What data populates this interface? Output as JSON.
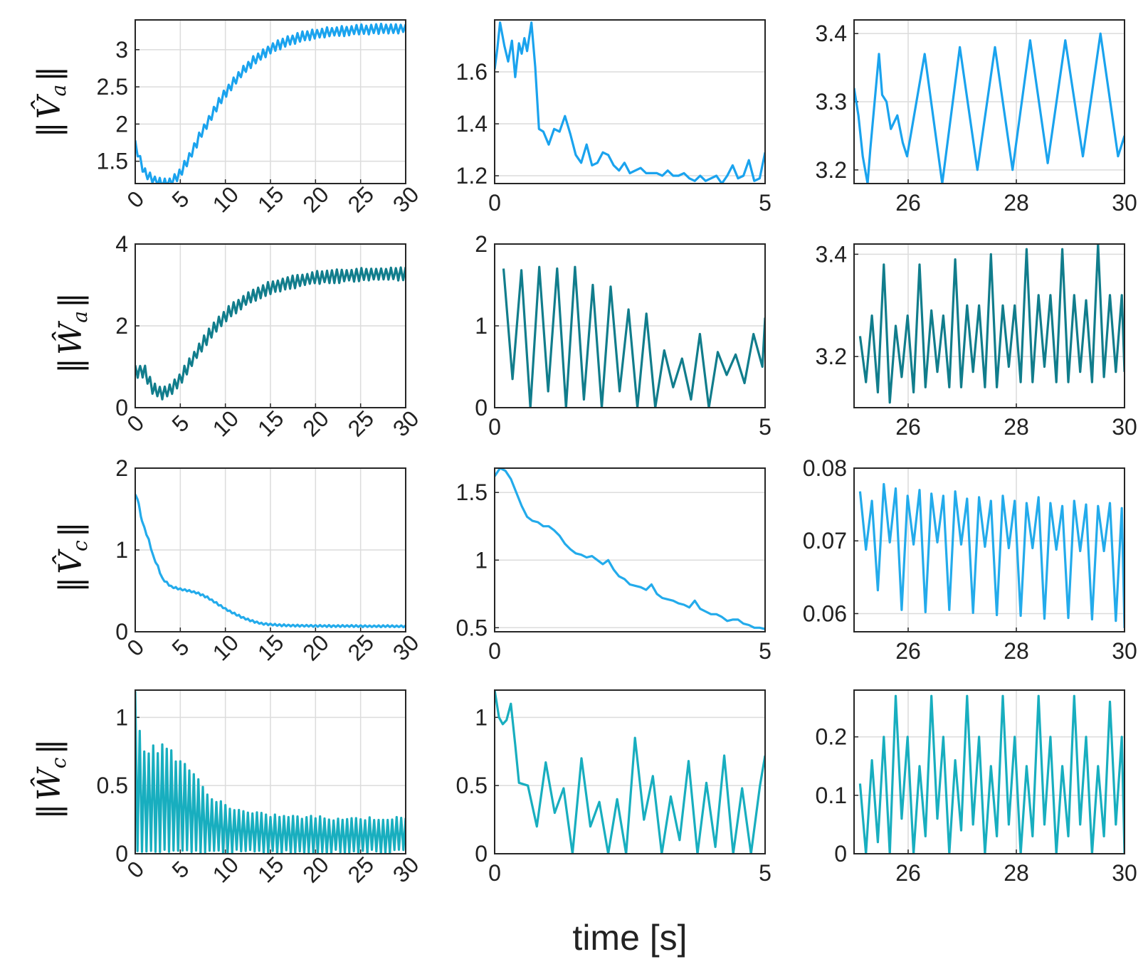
{
  "figure": {
    "xlabel": "time [s]"
  },
  "colors": {
    "Va": "#1aa3ee",
    "Wa": "#117d8c",
    "Vc": "#23abeb",
    "Wc": "#18aebf",
    "frame": "#262626",
    "grid": "#dcdcdc"
  },
  "rows": [
    {
      "id": "Va",
      "ylabel": {
        "base": "V",
        "sub": "a"
      }
    },
    {
      "id": "Wa",
      "ylabel": {
        "base": "W",
        "sub": "a"
      }
    },
    {
      "id": "Vc",
      "ylabel": {
        "base": "V",
        "sub": "c"
      }
    },
    {
      "id": "Wc",
      "ylabel": {
        "base": "W",
        "sub": "c"
      }
    }
  ],
  "chart_data": [
    {
      "type": "line",
      "row": 0,
      "col": 0,
      "series": "Va",
      "xlim": [
        0,
        30
      ],
      "ylim": [
        1.2,
        3.4
      ],
      "xticks": [
        "0",
        "5",
        "10",
        "15",
        "20",
        "25",
        "30"
      ],
      "xtick_rotation": "-45",
      "yticks": [
        "1.5",
        "2",
        "2.5",
        "3"
      ],
      "x": [
        0,
        1,
        2,
        3,
        4,
        5,
        6,
        7,
        8,
        9,
        10,
        11,
        12,
        13,
        14,
        15,
        16,
        17,
        18,
        19,
        20,
        21,
        22,
        23,
        24,
        25,
        26,
        27,
        28,
        29,
        30
      ],
      "values": [
        1.72,
        1.35,
        1.25,
        1.2,
        1.22,
        1.34,
        1.55,
        1.8,
        2.02,
        2.23,
        2.42,
        2.58,
        2.72,
        2.84,
        2.93,
        3.01,
        3.07,
        3.12,
        3.16,
        3.19,
        3.21,
        3.23,
        3.24,
        3.25,
        3.26,
        3.27,
        3.27,
        3.28,
        3.28,
        3.28,
        3.29
      ],
      "oscillation": {
        "period": 0.55,
        "amplitude": 0.07
      }
    },
    {
      "type": "line",
      "row": 0,
      "col": 1,
      "series": "Va",
      "xlim": [
        0,
        5
      ],
      "ylim": [
        1.17,
        1.8
      ],
      "xticks": [
        "0",
        "5"
      ],
      "yticks": [
        "1.2",
        "1.4",
        "1.6"
      ],
      "x": [
        0,
        0.05,
        0.1,
        0.18,
        0.25,
        0.32,
        0.38,
        0.45,
        0.5,
        0.55,
        0.6,
        0.68,
        0.75,
        0.82,
        0.9,
        1.0,
        1.1,
        1.2,
        1.3,
        1.4,
        1.5,
        1.6,
        1.7,
        1.8,
        1.9,
        2.0,
        2.1,
        2.2,
        2.3,
        2.4,
        2.5,
        2.6,
        2.7,
        2.8,
        2.9,
        3.0,
        3.1,
        3.2,
        3.3,
        3.4,
        3.5,
        3.6,
        3.7,
        3.8,
        3.9,
        4.0,
        4.1,
        4.2,
        4.3,
        4.4,
        4.5,
        4.6,
        4.7,
        4.8,
        4.9,
        5.0
      ],
      "values": [
        1.61,
        1.69,
        1.79,
        1.7,
        1.64,
        1.72,
        1.58,
        1.71,
        1.67,
        1.73,
        1.68,
        1.79,
        1.62,
        1.38,
        1.37,
        1.32,
        1.38,
        1.37,
        1.43,
        1.36,
        1.28,
        1.25,
        1.32,
        1.24,
        1.25,
        1.29,
        1.28,
        1.24,
        1.22,
        1.25,
        1.21,
        1.22,
        1.23,
        1.21,
        1.21,
        1.21,
        1.2,
        1.22,
        1.2,
        1.2,
        1.21,
        1.19,
        1.18,
        1.2,
        1.18,
        1.19,
        1.2,
        1.17,
        1.2,
        1.24,
        1.19,
        1.2,
        1.26,
        1.18,
        1.19,
        1.29
      ]
    },
    {
      "type": "line",
      "row": 0,
      "col": 2,
      "series": "Va",
      "xlim": [
        25,
        30
      ],
      "ylim": [
        3.18,
        3.42
      ],
      "xticks": [
        "26",
        "28",
        "30"
      ],
      "yticks": [
        "3.2",
        "3.3",
        "3.4"
      ],
      "x": [
        25,
        25.08,
        25.16,
        25.25,
        25.3,
        25.38,
        25.46,
        25.52,
        25.6,
        25.68,
        25.8,
        25.9,
        25.98
      ],
      "values": [
        3.32,
        3.28,
        3.22,
        3.18,
        3.23,
        3.3,
        3.37,
        3.31,
        3.3,
        3.26,
        3.28,
        3.24,
        3.22
      ],
      "periodic": {
        "period": 0.65,
        "peaks": [
          3.37,
          3.38,
          3.38,
          3.39,
          3.39,
          3.4,
          3.4,
          3.41
        ],
        "troughs": [
          3.18,
          3.2,
          3.2,
          3.21,
          3.22,
          3.22,
          3.23,
          3.23
        ],
        "end": 3.25
      }
    },
    {
      "type": "line",
      "row": 1,
      "col": 0,
      "series": "Wa",
      "xlim": [
        0,
        30
      ],
      "ylim": [
        0,
        4
      ],
      "xticks": [
        "0",
        "5",
        "10",
        "15",
        "20",
        "25",
        "30"
      ],
      "xtick_rotation": "-45",
      "yticks": [
        "0",
        "2",
        "4"
      ],
      "x": [
        0,
        1,
        2,
        3,
        4,
        5,
        6,
        7,
        8,
        9,
        10,
        11,
        12,
        13,
        14,
        15,
        16,
        17,
        18,
        19,
        20,
        21,
        22,
        23,
        24,
        25,
        26,
        27,
        28,
        29,
        30
      ],
      "values": [
        0.9,
        0.9,
        0.45,
        0.35,
        0.45,
        0.7,
        1.05,
        1.4,
        1.72,
        2.0,
        2.24,
        2.44,
        2.6,
        2.73,
        2.84,
        2.93,
        3.0,
        3.06,
        3.1,
        3.14,
        3.17,
        3.19,
        3.21,
        3.22,
        3.24,
        3.25,
        3.26,
        3.26,
        3.27,
        3.27,
        3.27
      ],
      "oscillation": {
        "period": 0.55,
        "amplitude": 0.17
      }
    },
    {
      "type": "line",
      "row": 1,
      "col": 1,
      "series": "Wa",
      "xlim": [
        0,
        5
      ],
      "ylim": [
        0,
        2
      ],
      "xticks": [
        "0",
        "5"
      ],
      "yticks": [
        "0",
        "1",
        "2"
      ],
      "periodic": {
        "period": 0.33,
        "peaks": [
          1.7,
          1.68,
          1.72,
          1.7,
          1.72,
          1.5,
          1.48,
          1.2,
          1.15,
          0.7,
          0.6,
          0.9,
          0.68,
          0.65,
          0.9,
          0.65
        ],
        "troughs": [
          0.35,
          0.0,
          0.2,
          0.0,
          0.1,
          0.0,
          0.2,
          0.0,
          0.0,
          0.25,
          0.1,
          0.0,
          0.4,
          0.3,
          0.5,
          0.35
        ],
        "end": 1.1
      }
    },
    {
      "type": "line",
      "row": 1,
      "col": 2,
      "series": "Wa",
      "xlim": [
        25,
        30
      ],
      "ylim": [
        3.1,
        3.42
      ],
      "xticks": [
        "26",
        "28",
        "30"
      ],
      "yticks": [
        "3.2",
        "3.4"
      ],
      "periodic": {
        "period": 0.22,
        "peaks": [
          3.24,
          3.28,
          3.38,
          3.26,
          3.28,
          3.38,
          3.29,
          3.28,
          3.39,
          3.3,
          3.3,
          3.4,
          3.3,
          3.3,
          3.41,
          3.32,
          3.32,
          3.41,
          3.32,
          3.31,
          3.42,
          3.32,
          3.32
        ],
        "troughs": [
          3.15,
          3.13,
          3.11,
          3.16,
          3.13,
          3.14,
          3.17,
          3.14,
          3.14,
          3.17,
          3.14,
          3.14,
          3.18,
          3.15,
          3.15,
          3.18,
          3.15,
          3.15,
          3.17,
          3.15,
          3.16,
          3.17,
          3.16
        ],
        "end": 3.17
      }
    },
    {
      "type": "line",
      "row": 2,
      "col": 0,
      "series": "Vc",
      "xlim": [
        0,
        30
      ],
      "ylim": [
        0,
        2
      ],
      "xticks": [
        "0",
        "5",
        "10",
        "15",
        "20",
        "25",
        "30"
      ],
      "xtick_rotation": "-45",
      "yticks": [
        "0",
        "1",
        "2"
      ],
      "x": [
        0,
        0.3,
        0.6,
        1,
        1.5,
        2,
        2.5,
        3,
        4,
        5,
        6,
        7,
        8,
        9,
        10,
        11,
        12,
        13,
        14,
        15,
        16,
        18,
        20,
        22,
        24,
        26,
        28,
        30
      ],
      "values": [
        1.67,
        1.62,
        1.42,
        1.27,
        1.12,
        0.92,
        0.8,
        0.65,
        0.55,
        0.52,
        0.5,
        0.47,
        0.42,
        0.35,
        0.28,
        0.22,
        0.17,
        0.13,
        0.1,
        0.09,
        0.08,
        0.075,
        0.072,
        0.07,
        0.07,
        0.068,
        0.068,
        0.066
      ],
      "oscillation": {
        "period": 0.5,
        "amplitude": 0.012
      }
    },
    {
      "type": "line",
      "row": 2,
      "col": 1,
      "series": "Vc",
      "xlim": [
        0,
        5
      ],
      "ylim": [
        0.47,
        1.68
      ],
      "xticks": [
        "0",
        "5"
      ],
      "yticks": [
        "0.5",
        "1",
        "1.5"
      ],
      "x": [
        0,
        0.1,
        0.2,
        0.3,
        0.4,
        0.5,
        0.6,
        0.7,
        0.8,
        0.9,
        1.0,
        1.1,
        1.2,
        1.3,
        1.4,
        1.5,
        1.6,
        1.7,
        1.8,
        1.9,
        2.0,
        2.1,
        2.2,
        2.3,
        2.4,
        2.5,
        2.6,
        2.7,
        2.8,
        2.9,
        3.0,
        3.1,
        3.2,
        3.3,
        3.4,
        3.5,
        3.6,
        3.7,
        3.8,
        3.9,
        4.0,
        4.1,
        4.2,
        4.3,
        4.4,
        4.5,
        4.6,
        4.7,
        4.8,
        4.9,
        5.0
      ],
      "values": [
        1.62,
        1.68,
        1.66,
        1.6,
        1.5,
        1.4,
        1.32,
        1.29,
        1.28,
        1.25,
        1.25,
        1.22,
        1.18,
        1.12,
        1.08,
        1.05,
        1.04,
        1.02,
        1.03,
        1.0,
        0.97,
        1.0,
        0.93,
        0.88,
        0.86,
        0.82,
        0.81,
        0.8,
        0.78,
        0.82,
        0.75,
        0.72,
        0.71,
        0.7,
        0.68,
        0.67,
        0.65,
        0.7,
        0.64,
        0.62,
        0.6,
        0.6,
        0.58,
        0.55,
        0.56,
        0.56,
        0.53,
        0.52,
        0.5,
        0.5,
        0.49
      ]
    },
    {
      "type": "line",
      "row": 2,
      "col": 2,
      "series": "Vc",
      "xlim": [
        25,
        30
      ],
      "ylim": [
        0.0575,
        0.08
      ],
      "xticks": [
        "26",
        "28",
        "30"
      ],
      "yticks": [
        "0.06",
        "0.07",
        "0.08"
      ],
      "periodic": {
        "period": 0.22,
        "peaks": [
          0.0768,
          0.0755,
          0.0778,
          0.0772,
          0.0762,
          0.077,
          0.0765,
          0.0762,
          0.0768,
          0.0758,
          0.076,
          0.0755,
          0.0762,
          0.0755,
          0.0752,
          0.076,
          0.0752,
          0.0748,
          0.0755,
          0.075,
          0.0748,
          0.0752,
          0.0745
        ],
        "troughs": [
          0.0688,
          0.0632,
          0.0698,
          0.0605,
          0.0695,
          0.0602,
          0.0698,
          0.0605,
          0.0695,
          0.0601,
          0.0692,
          0.0598,
          0.069,
          0.0597,
          0.069,
          0.0593,
          0.0688,
          0.0594,
          0.0686,
          0.0592,
          0.0686,
          0.059,
          0.0686
        ],
        "end": 0.058
      }
    },
    {
      "type": "line",
      "row": 3,
      "col": 0,
      "series": "Wc",
      "xlim": [
        0,
        30
      ],
      "ylim": [
        0,
        1.2
      ],
      "xticks": [
        "0",
        "5",
        "10",
        "15",
        "20",
        "25",
        "30"
      ],
      "xtick_rotation": "-45",
      "yticks": [
        "0",
        "0.5",
        "1"
      ],
      "x": [
        0,
        1,
        2,
        3,
        4,
        5,
        6,
        7,
        8,
        9,
        10,
        12,
        14,
        16,
        18,
        20,
        22,
        24,
        26,
        28,
        30
      ],
      "values": [
        1.2,
        0.8,
        0.8,
        0.82,
        0.78,
        0.72,
        0.66,
        0.55,
        0.45,
        0.42,
        0.37,
        0.32,
        0.3,
        0.29,
        0.28,
        0.28,
        0.27,
        0.27,
        0.27,
        0.27,
        0.27
      ],
      "oscillation_floor": 0.0,
      "period": 0.5
    },
    {
      "type": "line",
      "row": 3,
      "col": 1,
      "series": "Wc",
      "xlim": [
        0,
        5
      ],
      "ylim": [
        0,
        1.2
      ],
      "xticks": [
        "0",
        "5"
      ],
      "yticks": [
        "0",
        "0.5",
        "1"
      ],
      "x": [
        0,
        0.08,
        0.15,
        0.22,
        0.3,
        0.38,
        0.45
      ],
      "values": [
        1.2,
        1.0,
        0.95,
        0.98,
        1.1,
        0.8,
        0.52
      ],
      "periodic": {
        "period": 0.33,
        "peaks": [
          0.5,
          0.67,
          0.48,
          0.7,
          0.38,
          0.4,
          0.85,
          0.57,
          0.42,
          0.68,
          0.52,
          0.72,
          0.48
        ],
        "troughs": [
          0.2,
          0.3,
          0.0,
          0.2,
          0.0,
          0.0,
          0.25,
          0.0,
          0.1,
          0.0,
          0.05,
          0.0,
          0.0
        ],
        "end": 0.72
      }
    },
    {
      "type": "line",
      "row": 3,
      "col": 2,
      "series": "Wc",
      "xlim": [
        25,
        30
      ],
      "ylim": [
        0,
        0.28
      ],
      "xticks": [
        "26",
        "28",
        "30"
      ],
      "yticks": [
        "0",
        "0.1",
        "0.2"
      ],
      "periodic": {
        "period": 0.22,
        "peaks": [
          0.12,
          0.16,
          0.2,
          0.27,
          0.2,
          0.15,
          0.27,
          0.2,
          0.16,
          0.27,
          0.2,
          0.15,
          0.27,
          0.2,
          0.15,
          0.27,
          0.2,
          0.15,
          0.27,
          0.2,
          0.15,
          0.26,
          0.2
        ],
        "troughs": [
          0.0,
          0.02,
          0.0,
          0.06,
          0.0,
          0.03,
          0.06,
          0.0,
          0.04,
          0.05,
          0.0,
          0.03,
          0.05,
          0.0,
          0.03,
          0.05,
          0.0,
          0.03,
          0.05,
          0.0,
          0.03,
          0.05,
          0.0
        ],
        "end": 0.0
      }
    }
  ]
}
